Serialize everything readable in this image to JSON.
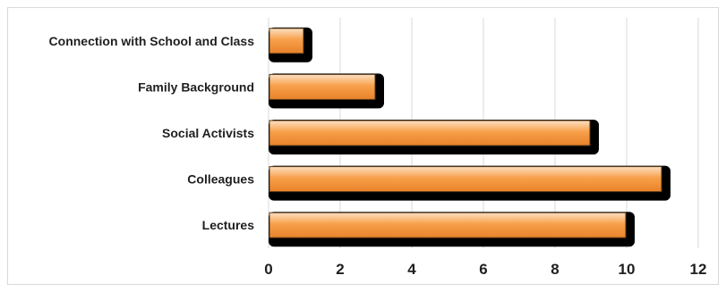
{
  "chart_data": {
    "type": "bar",
    "orientation": "horizontal",
    "categories": [
      "Connection with School and Class",
      "Family Background",
      "Social Activists",
      "Colleagues",
      "Lectures"
    ],
    "values": [
      1,
      3,
      9,
      11,
      10
    ],
    "xlim": [
      0,
      12
    ],
    "xticks": [
      "0",
      "2",
      "4",
      "6",
      "8",
      "10",
      "12"
    ],
    "title": "",
    "xlabel": "",
    "ylabel": "",
    "grid": "vertical",
    "legend": "none",
    "colors": {
      "bar_light": "#fde0c2",
      "bar_mid": "#f7a04a",
      "bar_dark": "#e8822a",
      "shadow": "#000000",
      "grid": "#d9d9d9"
    }
  }
}
